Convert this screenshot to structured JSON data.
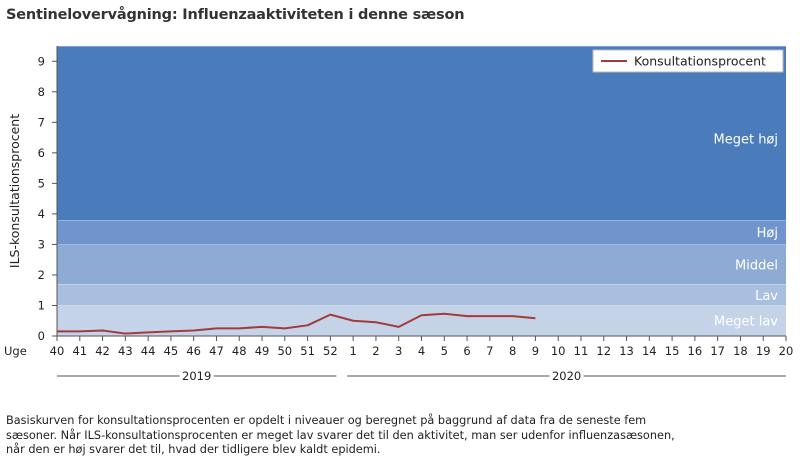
{
  "title": "Sentinelovervågning: Influenzaaktiviteten i denne sæson",
  "footnote": [
    "Basiskurven for konsultationsprocenten er opdelt i niveauer og beregnet på baggrund af data fra de seneste fem",
    "sæsoner. Når ILS-konsultationsprocenten er meget lav svarer det til den aktivitet, man ser udenfor influenzasæsonen,",
    "når den er høj svarer det til, hvad der tidligere blev kaldt epidemi."
  ],
  "chart_data": {
    "type": "line",
    "ylabel": "ILS-konsultationsprocent",
    "xlabel_prefix": "Uge",
    "ylim": [
      0,
      9.5
    ],
    "y_ticks": [
      0,
      1,
      2,
      3,
      4,
      5,
      6,
      7,
      8,
      9
    ],
    "x_ticks": [
      "40",
      "41",
      "42",
      "43",
      "44",
      "45",
      "46",
      "47",
      "48",
      "49",
      "50",
      "51",
      "52",
      "1",
      "2",
      "3",
      "4",
      "5",
      "6",
      "7",
      "8",
      "9",
      "10",
      "11",
      "12",
      "13",
      "14",
      "15",
      "16",
      "17",
      "18",
      "19",
      "20"
    ],
    "year_labels": [
      {
        "label": "2019",
        "start": "40",
        "end": "52"
      },
      {
        "label": "2020",
        "start": "1",
        "end": "20"
      }
    ],
    "bands": [
      {
        "label": "Meget lav",
        "from": 0,
        "to": 1.0,
        "color": "#c5d3e9"
      },
      {
        "label": "Lav",
        "from": 1.0,
        "to": 1.7,
        "color": "#a8bfe0"
      },
      {
        "label": "Middel",
        "from": 1.7,
        "to": 3.0,
        "color": "#8eabd6"
      },
      {
        "label": "Høj",
        "from": 3.0,
        "to": 3.8,
        "color": "#6f95cc"
      },
      {
        "label": "Meget høj",
        "from": 3.8,
        "to": 9.5,
        "color": "#4a7cbc"
      }
    ],
    "series": [
      {
        "name": "Konsultationsprocent",
        "color": "#a43b3b",
        "x": [
          "40",
          "41",
          "42",
          "43",
          "44",
          "45",
          "46",
          "47",
          "48",
          "49",
          "50",
          "51",
          "52",
          "1",
          "2",
          "3",
          "4",
          "5",
          "6",
          "7",
          "8",
          "9"
        ],
        "values": [
          0.15,
          0.15,
          0.18,
          0.08,
          0.12,
          0.15,
          0.18,
          0.25,
          0.25,
          0.3,
          0.25,
          0.35,
          0.7,
          0.5,
          0.45,
          0.3,
          0.68,
          0.73,
          0.65,
          0.65,
          0.65,
          0.58
        ]
      }
    ],
    "legend_position": "top-right",
    "grid": false
  }
}
